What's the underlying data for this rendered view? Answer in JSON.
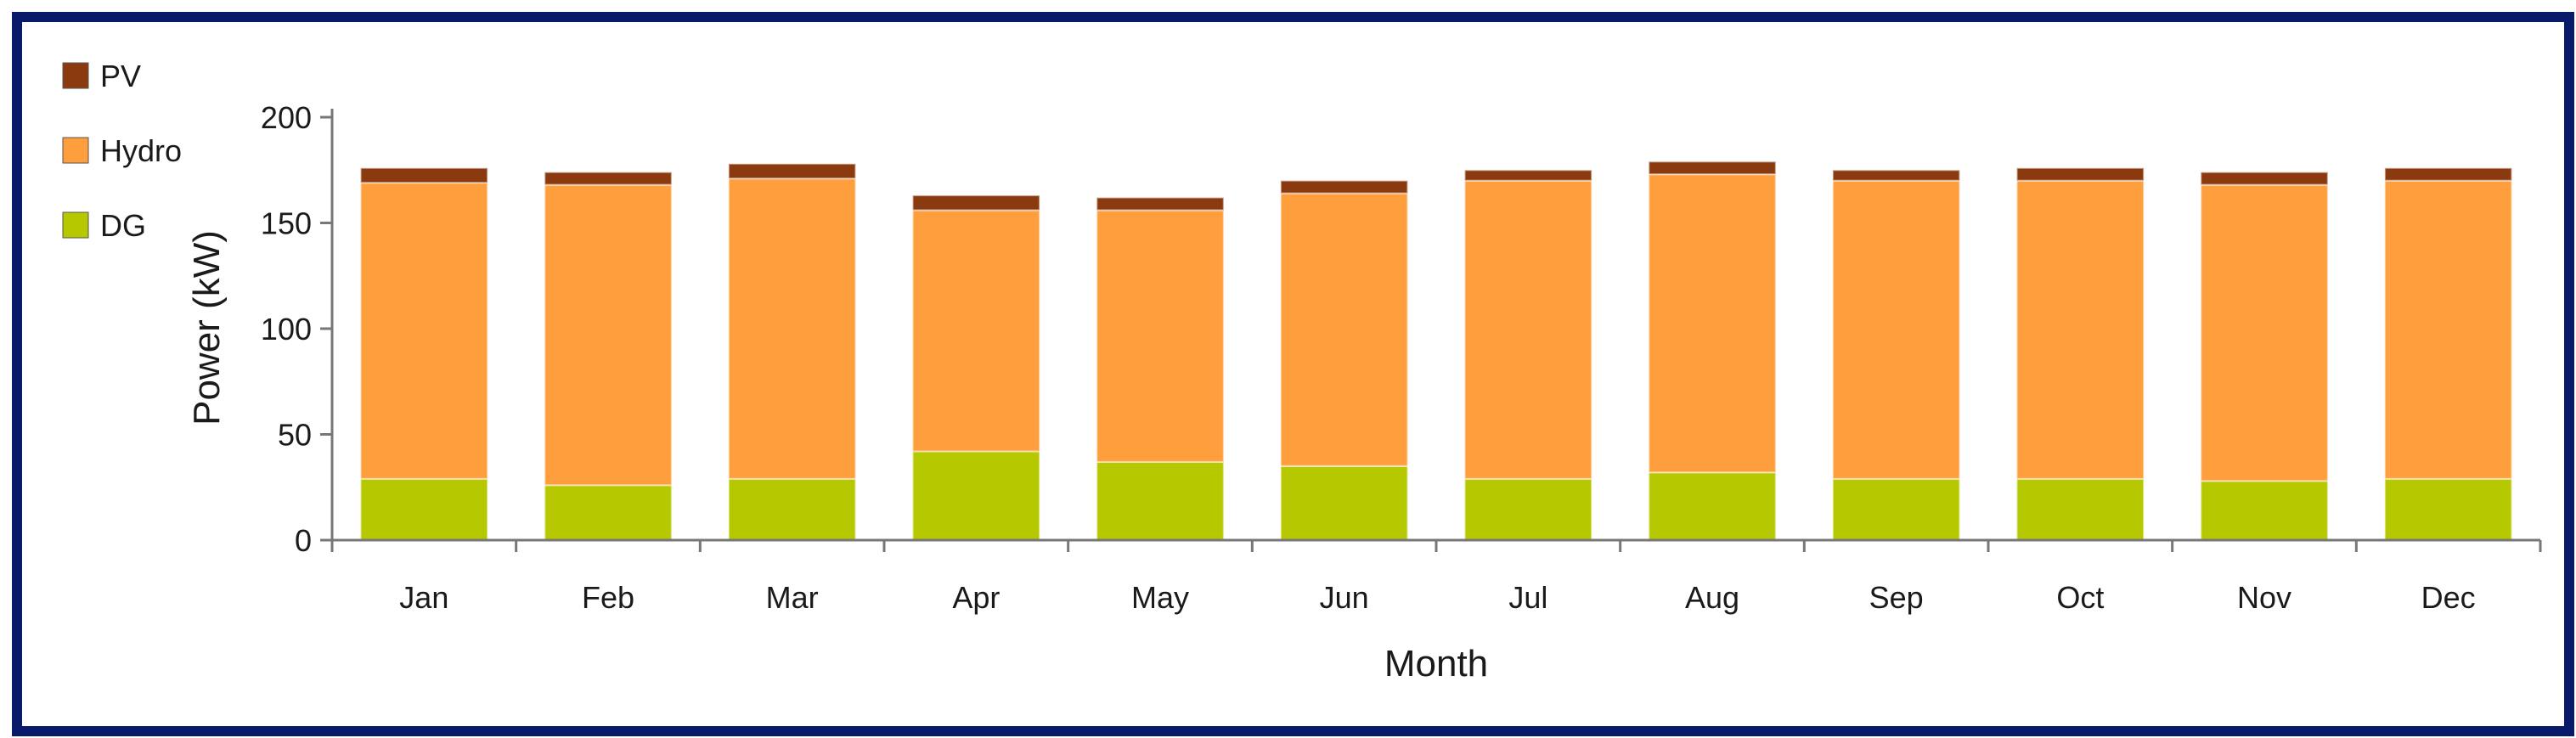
{
  "chart_data": {
    "type": "bar",
    "stacked": true,
    "categories": [
      "Jan",
      "Feb",
      "Mar",
      "Apr",
      "May",
      "Jun",
      "Jul",
      "Aug",
      "Sep",
      "Oct",
      "Nov",
      "Dec"
    ],
    "series": [
      {
        "name": "DG",
        "color": "#b5c800",
        "values": [
          29,
          26,
          29,
          42,
          37,
          35,
          29,
          32,
          29,
          29,
          28,
          29
        ]
      },
      {
        "name": "Hydro",
        "color": "#ff9e3d",
        "values": [
          140,
          142,
          142,
          114,
          119,
          129,
          141,
          141,
          141,
          141,
          140,
          141
        ]
      },
      {
        "name": "PV",
        "color": "#8b3a0f",
        "values": [
          7,
          6,
          7,
          7,
          6,
          6,
          5,
          6,
          5,
          6,
          6,
          6
        ]
      }
    ],
    "legend_order": [
      "PV",
      "Hydro",
      "DG"
    ],
    "xlabel": "Month",
    "ylabel": "Power (kW)",
    "ylim": [
      0,
      200
    ],
    "yticks": [
      0,
      50,
      100,
      150,
      200
    ],
    "grid": false,
    "legend_position": "top-left"
  }
}
